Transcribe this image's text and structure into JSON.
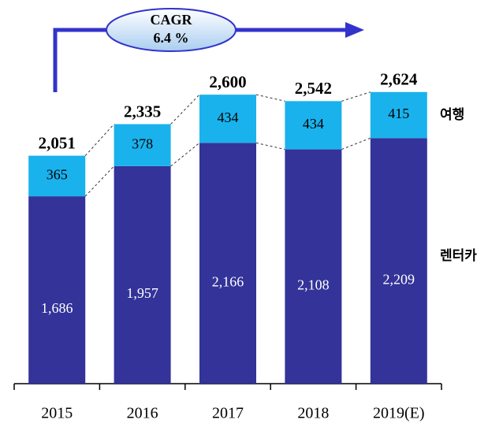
{
  "chart_data": {
    "type": "stacked-bar",
    "annotation": {
      "lines": [
        "CAGR",
        "6.4 %"
      ]
    },
    "categories": [
      "2015",
      "2016",
      "2017",
      "2018",
      "2019(E)"
    ],
    "series": [
      {
        "name": "렌터카",
        "color": "#333399",
        "values": [
          1686,
          1957,
          2166,
          2108,
          2209
        ],
        "value_labels": [
          "1,686",
          "1,957",
          "2,166",
          "2,108",
          "2,209"
        ]
      },
      {
        "name": "여행",
        "color": "#1ab2ec",
        "values": [
          365,
          378,
          434,
          434,
          415
        ]
      }
    ],
    "totals": {
      "values": [
        2051,
        2335,
        2600,
        2542,
        2624
      ],
      "value_labels": [
        "2,051",
        "2,335",
        "2,600",
        "2,542",
        "2,624"
      ]
    },
    "ylim": [
      0,
      2750
    ]
  }
}
